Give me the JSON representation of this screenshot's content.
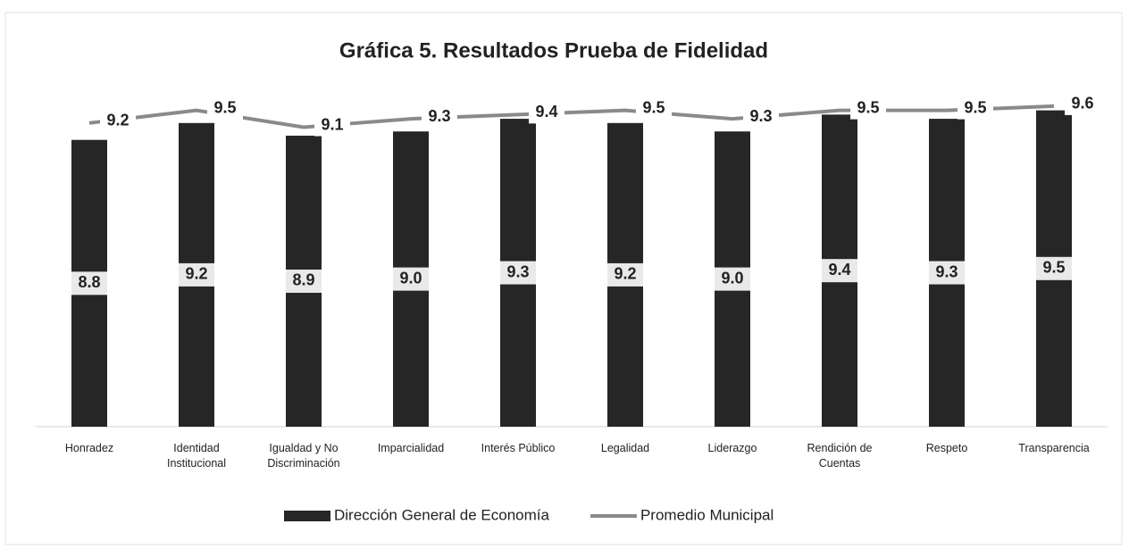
{
  "chart_data": {
    "type": "bar_line",
    "title": "Gráfica 5. Resultados Prueba de Fidelidad",
    "categories": [
      "Honradez",
      "Identidad Institucional",
      "Igualdad y No Discriminación",
      "Imparcialidad",
      "Interés Público",
      "Legalidad",
      "Liderazgo",
      "Rendición de Cuentas",
      "Respeto",
      "Transparencia"
    ],
    "series": [
      {
        "name": "Dirección General de Economía",
        "type": "bar",
        "color": "#262626",
        "values": [
          8.8,
          9.2,
          8.9,
          9.0,
          9.3,
          9.2,
          9.0,
          9.4,
          9.3,
          9.5
        ],
        "value_labels": [
          "8.8",
          "9.2",
          "8.9",
          "9.0",
          "9.3",
          "9.2",
          "9.0",
          "9.4",
          "9.3",
          "9.5"
        ]
      },
      {
        "name": "Promedio Municipal",
        "type": "line",
        "color": "#8a8a8a",
        "values": [
          9.2,
          9.5,
          9.1,
          9.3,
          9.4,
          9.5,
          9.3,
          9.5,
          9.5,
          9.6
        ]
      }
    ],
    "ylim": [
      2,
      10
    ],
    "legend": "bottom"
  }
}
